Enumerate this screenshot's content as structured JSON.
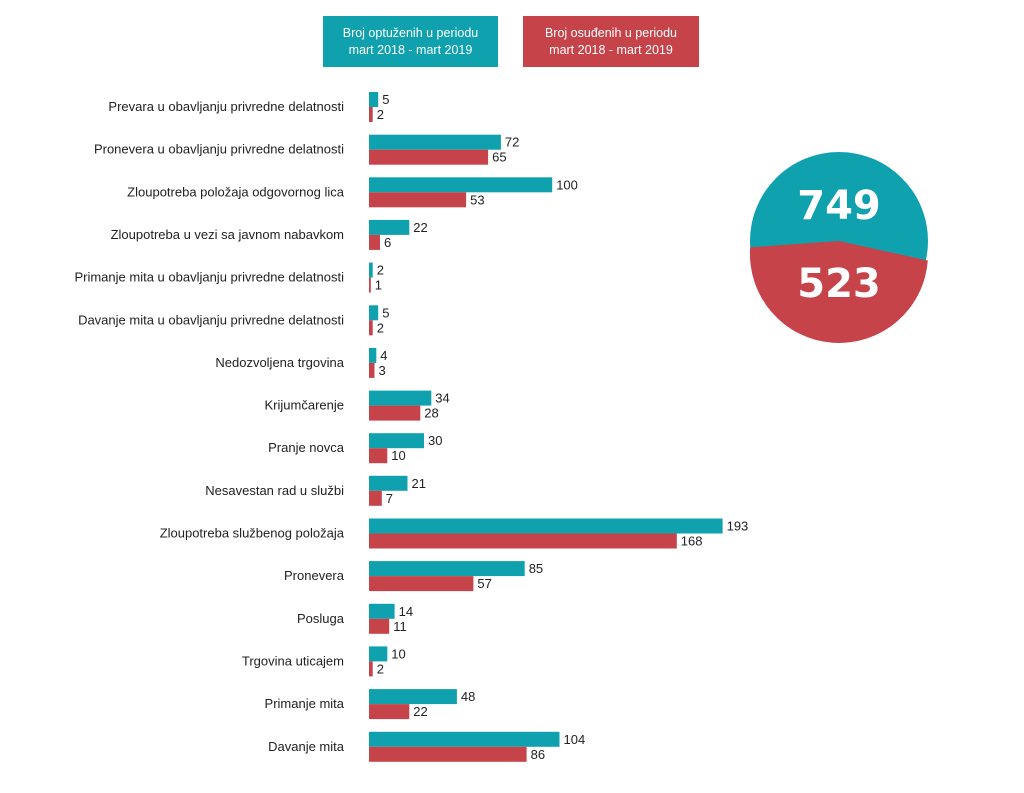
{
  "legend": {
    "accused_line1": "Broj optuženih u periodu",
    "accused_line2": "mart 2018 - mart 2019",
    "convicted_line1": "Broj osuđenih u periodu",
    "convicted_line2": "mart 2018 - mart 2019"
  },
  "totals": {
    "accused": "749",
    "convicted": "523"
  },
  "colors": {
    "accused": "#10a1ae",
    "convicted": "#c6434a"
  },
  "chart_data": {
    "type": "bar",
    "orientation": "horizontal",
    "categories": [
      "Prevara u obavljanju privredne delatnosti",
      "Pronevera u obavljanju privredne delatnosti",
      "Zloupotreba položaja odgovornog lica",
      "Zloupotreba u vezi sa javnom nabavkom",
      "Primanje mita u obavljanju privredne delatnosti",
      "Davanje mita u obavljanju privredne delatnosti",
      "Nedozvoljena trgovina",
      "Krijumčarenje",
      "Pranje novca",
      "Nesavestan rad u službi",
      "Zloupotreba službenog položaja",
      "Pronevera",
      "Posluga",
      "Trgovina uticajem",
      "Primanje mita",
      "Davanje mita"
    ],
    "series": [
      {
        "name": "Broj optuženih u periodu mart 2018 - mart 2019",
        "values": [
          5,
          72,
          100,
          22,
          2,
          5,
          4,
          34,
          30,
          21,
          193,
          85,
          14,
          10,
          48,
          104
        ]
      },
      {
        "name": "Broj osuđenih u periodu mart 2018 - mart 2019",
        "values": [
          2,
          65,
          53,
          6,
          1,
          2,
          3,
          28,
          10,
          7,
          168,
          57,
          11,
          2,
          22,
          86
        ]
      }
    ],
    "legend_position": "top",
    "grid": false
  }
}
